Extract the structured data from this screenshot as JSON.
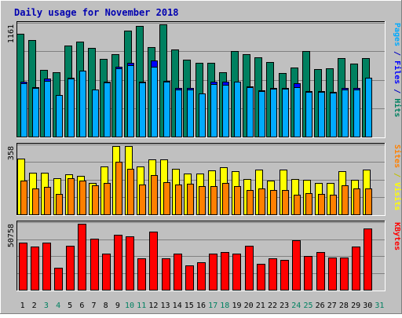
{
  "chart_data": {
    "type": "bar",
    "title": "Daily usage for November 2018",
    "days": [
      "1",
      "2",
      "3",
      "4",
      "5",
      "6",
      "7",
      "8",
      "9",
      "10",
      "11",
      "12",
      "13",
      "14",
      "15",
      "16",
      "17",
      "18",
      "19",
      "20",
      "21",
      "22",
      "23",
      "24",
      "25",
      "26",
      "27",
      "28",
      "29",
      "30",
      "31"
    ],
    "weekend_days": [
      "3",
      "4",
      "10",
      "11",
      "17",
      "18",
      "24",
      "25",
      "31"
    ],
    "panels": [
      {
        "key": "hits",
        "max_label": "1161",
        "ymax": 1161,
        "right_labels": [
          {
            "text": "Pages",
            "color": "#00aaff"
          },
          {
            "text": " / ",
            "color": "#0000c0"
          },
          {
            "text": "Files",
            "color": "#0000ff"
          },
          {
            "text": " / ",
            "color": "#0000c0"
          },
          {
            "text": "Hits",
            "color": "#008060"
          }
        ],
        "series": [
          {
            "name": "Hits",
            "color": "#008060",
            "values": [
              1062,
              1000,
              688,
              664,
              938,
              983,
              914,
              807,
              851,
              1094,
              1143,
              925,
              1161,
              905,
              794,
              766,
              762,
              668,
              883,
              854,
              824,
              770,
              661,
              718,
              885,
              695,
              703,
              815,
              752,
              813,
              0
            ]
          },
          {
            "name": "Files",
            "color": "#0000ff",
            "values": [
              570,
              510,
              600,
              430,
              606,
              680,
              490,
              570,
              720,
              760,
              570,
              790,
              580,
              500,
              500,
              450,
              570,
              570,
              570,
              520,
              480,
              500,
              500,
              550,
              470,
              470,
              460,
              500,
              500,
              600,
              0
            ]
          },
          {
            "name": "Pages",
            "color": "#00aaff",
            "values": [
              550,
              500,
              580,
              430,
              598,
              678,
              490,
              560,
              710,
              740,
              560,
              720,
              570,
              490,
              490,
              444,
              547,
              536,
              571,
              508,
              472,
              492,
              494,
              510,
              461,
              460,
              457,
              486,
              486,
              605,
              0
            ]
          }
        ]
      },
      {
        "key": "visits",
        "max_label": "358",
        "ymax": 358,
        "right_labels": [
          {
            "text": "Sites",
            "color": "#ff8000"
          },
          {
            "text": " / ",
            "color": "#c0c000"
          },
          {
            "text": "Visits",
            "color": "#ffff00"
          }
        ],
        "series": [
          {
            "name": "Visits",
            "color": "#ffff00",
            "values": [
              292,
              220,
              220,
              190,
              210,
              203,
              163,
              252,
              358,
              358,
              250,
              288,
              288,
              238,
              216,
              215,
              232,
              246,
              227,
              186,
              233,
              177,
              235,
              187,
              182,
              166,
              166,
              227,
              183,
              236,
              0
            ]
          },
          {
            "name": "Sites",
            "color": "#ff8000",
            "values": [
              176,
              137,
              143,
              106,
              188,
              177,
              153,
              166,
              277,
              239,
              155,
              206,
              168,
              157,
              161,
              148,
              149,
              163,
              147,
              128,
              137,
              128,
              127,
              103,
              112,
              108,
              102,
              152,
              134,
              134,
              0
            ]
          }
        ]
      },
      {
        "key": "kbytes",
        "max_label": "50758",
        "ymax": 50758,
        "right_labels": [
          {
            "text": "KBytes",
            "color": "#ff0000"
          }
        ],
        "series": [
          {
            "name": "KBytes",
            "color": "#ff0000",
            "values": [
              36000,
              33000,
              36000,
              17000,
              34000,
              50758,
              39000,
              28000,
              42000,
              41000,
              24000,
              45000,
              24000,
              28000,
              19000,
              21000,
              28000,
              29000,
              28000,
              34000,
              20000,
              24000,
              23000,
              38000,
              26000,
              29000,
              25000,
              25000,
              33000,
              47000,
              0
            ]
          }
        ]
      }
    ]
  }
}
